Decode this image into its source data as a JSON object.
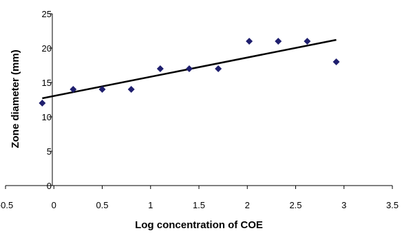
{
  "chart_data": {
    "type": "scatter",
    "title": "",
    "xlabel": "Log concentration of COE",
    "ylabel": "Zone diameter (mm)",
    "xlim": [
      -0.5,
      3.5
    ],
    "ylim": [
      0,
      25
    ],
    "x_ticks": [
      "-0.5",
      "0",
      "0.5",
      "1",
      "1.5",
      "2",
      "2.5",
      "3",
      "3.5"
    ],
    "y_ticks": [
      "0",
      "5",
      "10",
      "15",
      "20",
      "25"
    ],
    "grid": false,
    "legend": "none",
    "marker_color": "#1f1f6e",
    "line_color": "#000000",
    "series": [
      {
        "points": [
          {
            "x": -0.12,
            "y": 12
          },
          {
            "x": 0.2,
            "y": 14
          },
          {
            "x": 0.5,
            "y": 14
          },
          {
            "x": 0.8,
            "y": 14
          },
          {
            "x": 1.1,
            "y": 17
          },
          {
            "x": 1.4,
            "y": 17
          },
          {
            "x": 1.7,
            "y": 17
          },
          {
            "x": 2.02,
            "y": 21
          },
          {
            "x": 2.32,
            "y": 21
          },
          {
            "x": 2.62,
            "y": 21
          },
          {
            "x": 2.92,
            "y": 18
          }
        ]
      }
    ],
    "trendline": {
      "from": {
        "x": -0.12,
        "y": 12.7
      },
      "to": {
        "x": 2.92,
        "y": 21.2
      }
    }
  }
}
